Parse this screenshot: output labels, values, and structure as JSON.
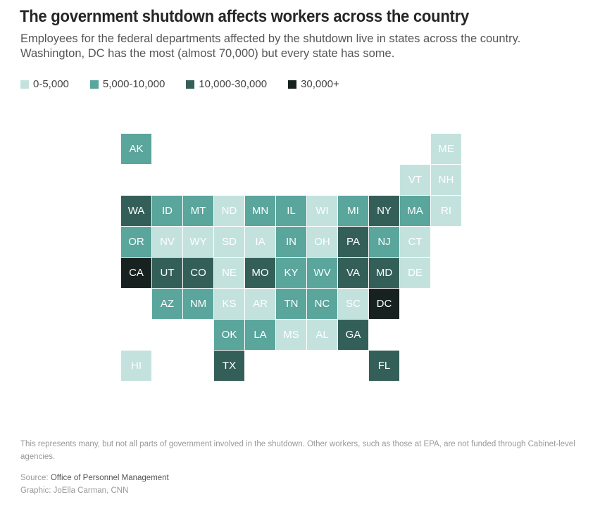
{
  "header": {
    "title": "The government shutdown affects workers across the country",
    "subtitle": "Employees for the federal departments affected by the shutdown live in states across the country. Washington, DC has the most (almost 70,000) but every state has some."
  },
  "legend": [
    {
      "label": "0-5,000",
      "color": "#c3e2de"
    },
    {
      "label": "5,000-10,000",
      "color": "#5aa59c"
    },
    {
      "label": "10,000-30,000",
      "color": "#345f59"
    },
    {
      "label": "30,000+",
      "color": "#172220"
    }
  ],
  "states": [
    {
      "abbr": "AK",
      "row": 0,
      "col": 0,
      "bin": 1
    },
    {
      "abbr": "ME",
      "row": 0,
      "col": 10,
      "bin": 0
    },
    {
      "abbr": "VT",
      "row": 1,
      "col": 9,
      "bin": 0
    },
    {
      "abbr": "NH",
      "row": 1,
      "col": 10,
      "bin": 0
    },
    {
      "abbr": "WA",
      "row": 2,
      "col": 0,
      "bin": 2
    },
    {
      "abbr": "ID",
      "row": 2,
      "col": 1,
      "bin": 1
    },
    {
      "abbr": "MT",
      "row": 2,
      "col": 2,
      "bin": 1
    },
    {
      "abbr": "ND",
      "row": 2,
      "col": 3,
      "bin": 0
    },
    {
      "abbr": "MN",
      "row": 2,
      "col": 4,
      "bin": 1
    },
    {
      "abbr": "IL",
      "row": 2,
      "col": 5,
      "bin": 1
    },
    {
      "abbr": "WI",
      "row": 2,
      "col": 6,
      "bin": 0
    },
    {
      "abbr": "MI",
      "row": 2,
      "col": 7,
      "bin": 1
    },
    {
      "abbr": "NY",
      "row": 2,
      "col": 8,
      "bin": 2
    },
    {
      "abbr": "MA",
      "row": 2,
      "col": 9,
      "bin": 1
    },
    {
      "abbr": "RI",
      "row": 2,
      "col": 10,
      "bin": 0
    },
    {
      "abbr": "OR",
      "row": 3,
      "col": 0,
      "bin": 1
    },
    {
      "abbr": "NV",
      "row": 3,
      "col": 1,
      "bin": 0
    },
    {
      "abbr": "WY",
      "row": 3,
      "col": 2,
      "bin": 0
    },
    {
      "abbr": "SD",
      "row": 3,
      "col": 3,
      "bin": 0
    },
    {
      "abbr": "IA",
      "row": 3,
      "col": 4,
      "bin": 0
    },
    {
      "abbr": "IN",
      "row": 3,
      "col": 5,
      "bin": 1
    },
    {
      "abbr": "OH",
      "row": 3,
      "col": 6,
      "bin": 0
    },
    {
      "abbr": "PA",
      "row": 3,
      "col": 7,
      "bin": 2
    },
    {
      "abbr": "NJ",
      "row": 3,
      "col": 8,
      "bin": 1
    },
    {
      "abbr": "CT",
      "row": 3,
      "col": 9,
      "bin": 0
    },
    {
      "abbr": "CA",
      "row": 4,
      "col": 0,
      "bin": 3
    },
    {
      "abbr": "UT",
      "row": 4,
      "col": 1,
      "bin": 2
    },
    {
      "abbr": "CO",
      "row": 4,
      "col": 2,
      "bin": 2
    },
    {
      "abbr": "NE",
      "row": 4,
      "col": 3,
      "bin": 0
    },
    {
      "abbr": "MO",
      "row": 4,
      "col": 4,
      "bin": 2
    },
    {
      "abbr": "KY",
      "row": 4,
      "col": 5,
      "bin": 1
    },
    {
      "abbr": "WV",
      "row": 4,
      "col": 6,
      "bin": 1
    },
    {
      "abbr": "VA",
      "row": 4,
      "col": 7,
      "bin": 2
    },
    {
      "abbr": "MD",
      "row": 4,
      "col": 8,
      "bin": 2
    },
    {
      "abbr": "DE",
      "row": 4,
      "col": 9,
      "bin": 0
    },
    {
      "abbr": "AZ",
      "row": 5,
      "col": 1,
      "bin": 1
    },
    {
      "abbr": "NM",
      "row": 5,
      "col": 2,
      "bin": 1
    },
    {
      "abbr": "KS",
      "row": 5,
      "col": 3,
      "bin": 0
    },
    {
      "abbr": "AR",
      "row": 5,
      "col": 4,
      "bin": 0
    },
    {
      "abbr": "TN",
      "row": 5,
      "col": 5,
      "bin": 1
    },
    {
      "abbr": "NC",
      "row": 5,
      "col": 6,
      "bin": 1
    },
    {
      "abbr": "SC",
      "row": 5,
      "col": 7,
      "bin": 0
    },
    {
      "abbr": "DC",
      "row": 5,
      "col": 8,
      "bin": 3
    },
    {
      "abbr": "OK",
      "row": 6,
      "col": 3,
      "bin": 1
    },
    {
      "abbr": "LA",
      "row": 6,
      "col": 4,
      "bin": 1
    },
    {
      "abbr": "MS",
      "row": 6,
      "col": 5,
      "bin": 0
    },
    {
      "abbr": "AL",
      "row": 6,
      "col": 6,
      "bin": 0
    },
    {
      "abbr": "GA",
      "row": 6,
      "col": 7,
      "bin": 2
    },
    {
      "abbr": "HI",
      "row": 7,
      "col": 0,
      "bin": 0
    },
    {
      "abbr": "TX",
      "row": 7,
      "col": 3,
      "bin": 2
    },
    {
      "abbr": "FL",
      "row": 7,
      "col": 8,
      "bin": 2
    }
  ],
  "footer": {
    "note": "This represents many, but not all parts of government involved in the shutdown. Other workers, such as those at EPA, are not funded through Cabinet-level agencies.",
    "source_label": "Source:",
    "source_name": "Office of Personnel Management",
    "credit": "Graphic: JoElla Carman, CNN"
  }
}
